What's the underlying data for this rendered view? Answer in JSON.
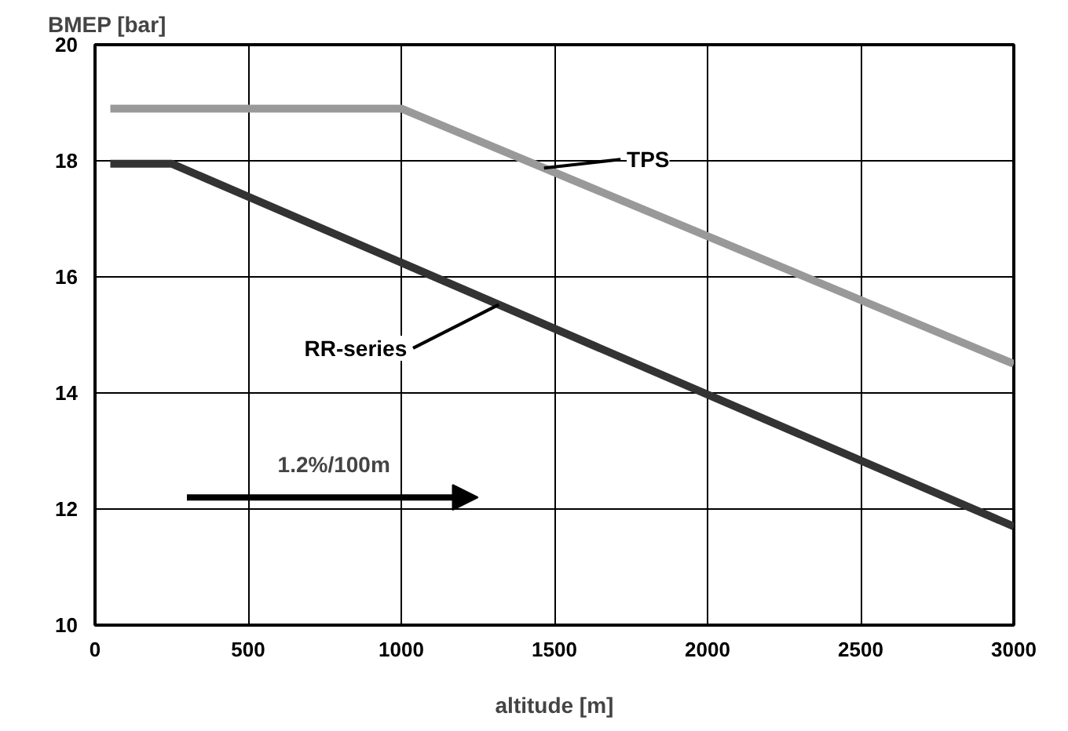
{
  "chart_data": {
    "type": "line",
    "xlabel": "altitude [m]",
    "ylabel": "BMEP [bar]",
    "series": [
      {
        "name": "TPS",
        "color": "#999999",
        "x": [
          50,
          1000,
          3000
        ],
        "values": [
          18.9,
          18.9,
          14.5
        ]
      },
      {
        "name": "RR-series",
        "color": "#333333",
        "x": [
          50,
          250,
          3000
        ],
        "values": [
          17.95,
          17.95,
          11.7
        ]
      }
    ],
    "annotations": [
      "1.2%/100m"
    ],
    "xlim": [
      0,
      3000
    ],
    "xticks": [
      0,
      500,
      1000,
      1500,
      2000,
      2500,
      3000
    ],
    "ylim": [
      10,
      20
    ],
    "yticks": [
      10,
      12,
      14,
      16,
      18,
      20
    ],
    "grid": true
  }
}
